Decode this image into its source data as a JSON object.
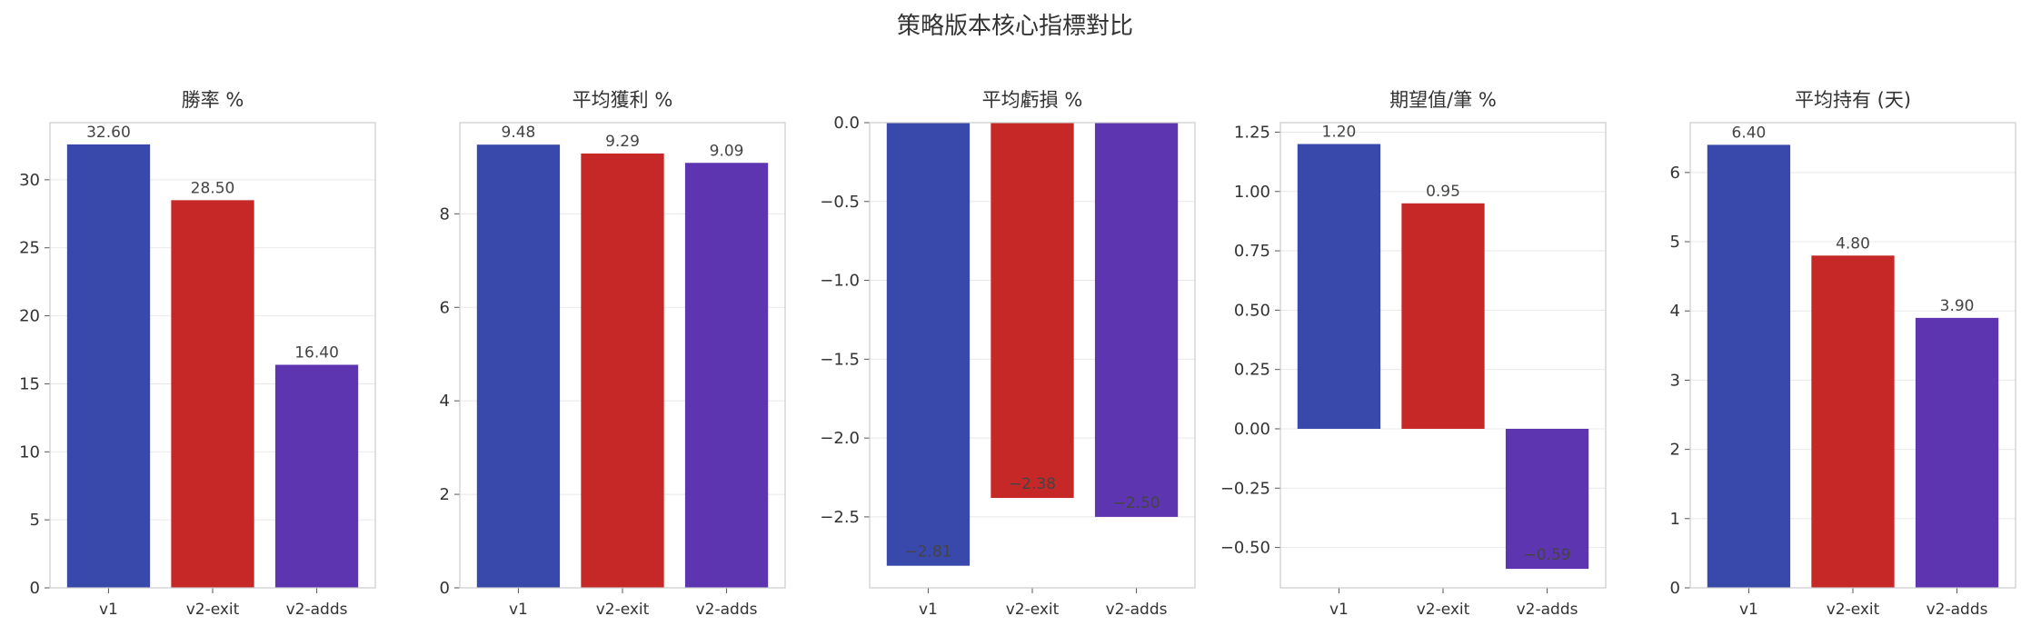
{
  "figure_title": "策略版本核心指標對比",
  "chart_data": [
    {
      "type": "bar",
      "title": "勝率 %",
      "categories": [
        "v1",
        "v2-exit",
        "v2-adds"
      ],
      "values": [
        32.6,
        28.5,
        16.4
      ],
      "value_labels": [
        "32.60",
        "28.50",
        "16.40"
      ],
      "ylim": [
        0,
        34.2
      ],
      "yticks": [
        0,
        5,
        10,
        15,
        20,
        25,
        30
      ],
      "ytick_labels": [
        "0",
        "5",
        "10",
        "15",
        "20",
        "25",
        "30"
      ],
      "grid": true
    },
    {
      "type": "bar",
      "title": "平均獲利 %",
      "categories": [
        "v1",
        "v2-exit",
        "v2-adds"
      ],
      "values": [
        9.48,
        9.29,
        9.09
      ],
      "value_labels": [
        "9.48",
        "9.29",
        "9.09"
      ],
      "ylim": [
        0,
        9.95
      ],
      "yticks": [
        0,
        2,
        4,
        6,
        8
      ],
      "ytick_labels": [
        "0",
        "2",
        "4",
        "6",
        "8"
      ],
      "grid": true
    },
    {
      "type": "bar",
      "title": "平均虧損 %",
      "categories": [
        "v1",
        "v2-exit",
        "v2-adds"
      ],
      "values": [
        -2.81,
        -2.38,
        -2.5
      ],
      "value_labels": [
        "−2.81",
        "−2.38",
        "−2.50"
      ],
      "ylim": [
        -2.95,
        0
      ],
      "yticks": [
        0,
        -0.5,
        -1.0,
        -1.5,
        -2.0,
        -2.5
      ],
      "ytick_labels": [
        "0.0",
        "−0.5",
        "−1.0",
        "−1.5",
        "−2.0",
        "−2.5"
      ],
      "grid": true
    },
    {
      "type": "bar",
      "title": "期望值/筆 %",
      "categories": [
        "v1",
        "v2-exit",
        "v2-adds"
      ],
      "values": [
        1.2,
        0.95,
        -0.59
      ],
      "value_labels": [
        "1.20",
        "0.95",
        "−0.59"
      ],
      "ylim": [
        -0.67,
        1.29
      ],
      "yticks": [
        -0.5,
        -0.25,
        0,
        0.25,
        0.5,
        0.75,
        1.0,
        1.25
      ],
      "ytick_labels": [
        "−0.50",
        "−0.25",
        "0.00",
        "0.25",
        "0.50",
        "0.75",
        "1.00",
        "1.25"
      ],
      "grid": true
    },
    {
      "type": "bar",
      "title": "平均持有 (天)",
      "categories": [
        "v1",
        "v2-exit",
        "v2-adds"
      ],
      "values": [
        6.4,
        4.8,
        3.9
      ],
      "value_labels": [
        "6.40",
        "4.80",
        "3.90"
      ],
      "ylim": [
        0,
        6.72
      ],
      "yticks": [
        0,
        1,
        2,
        3,
        4,
        5,
        6
      ],
      "ytick_labels": [
        "0",
        "1",
        "2",
        "3",
        "4",
        "5",
        "6"
      ],
      "grid": true
    }
  ],
  "colors": {
    "v1": "#3949ab",
    "v2-exit": "#c62828",
    "v2-adds": "#5e35b1"
  }
}
